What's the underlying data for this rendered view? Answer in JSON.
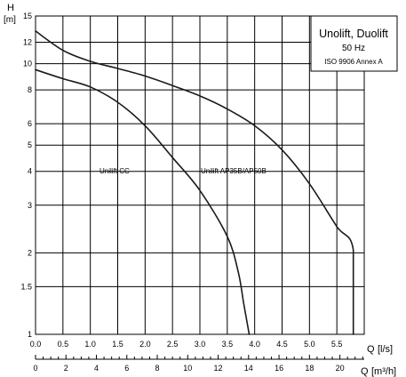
{
  "chart_data": {
    "type": "line",
    "y_unit_label": "H",
    "y_unit": "[m]",
    "x_label": "Q",
    "x_unit": "[l/s]",
    "x2_label": "Q",
    "x2_unit": "[m³/h]",
    "legend_box": {
      "title": "Unolift, Duolift",
      "line2": "50 Hz",
      "line3": "ISO 9906 Annex A"
    },
    "y_scale": "log",
    "ylim": [
      1,
      15
    ],
    "xlim": [
      0,
      6.0
    ],
    "x2lim": [
      0,
      21.6
    ],
    "y_ticks": [
      {
        "v": 1,
        "label": "1"
      },
      {
        "v": 1.5,
        "label": "1.5"
      },
      {
        "v": 2,
        "label": "2"
      },
      {
        "v": 3,
        "label": "3"
      },
      {
        "v": 4,
        "label": "4"
      },
      {
        "v": 5,
        "label": "5"
      },
      {
        "v": 6,
        "label": "6"
      },
      {
        "v": 8,
        "label": "8"
      },
      {
        "v": 10,
        "label": "10"
      },
      {
        "v": 12,
        "label": "12"
      },
      {
        "v": 15,
        "label": "15"
      }
    ],
    "x_ticks": [
      {
        "v": 0.0,
        "label": "0.0"
      },
      {
        "v": 0.5,
        "label": "0.5"
      },
      {
        "v": 1.0,
        "label": "1.0"
      },
      {
        "v": 1.5,
        "label": "1.5"
      },
      {
        "v": 2.0,
        "label": "2.0"
      },
      {
        "v": 2.5,
        "label": "2.5"
      },
      {
        "v": 3.0,
        "label": "3.0"
      },
      {
        "v": 3.5,
        "label": "3.5"
      },
      {
        "v": 4.0,
        "label": "4.0"
      },
      {
        "v": 4.5,
        "label": "4.5"
      },
      {
        "v": 5.0,
        "label": "5.0"
      },
      {
        "v": 5.5,
        "label": "5.5"
      }
    ],
    "x2_ticks": [
      {
        "v": 0,
        "label": "0"
      },
      {
        "v": 2,
        "label": "2"
      },
      {
        "v": 4,
        "label": "4"
      },
      {
        "v": 6,
        "label": "6"
      },
      {
        "v": 8,
        "label": "8"
      },
      {
        "v": 10,
        "label": "10"
      },
      {
        "v": 12,
        "label": "12"
      },
      {
        "v": 14,
        "label": "14"
      },
      {
        "v": 16,
        "label": "16"
      },
      {
        "v": 18,
        "label": "18"
      },
      {
        "v": 20,
        "label": "20"
      }
    ],
    "grid": true,
    "series": [
      {
        "name": "Unilift CC",
        "x": [
          0,
          0.5,
          1.0,
          1.5,
          2.0,
          2.5,
          3.0,
          3.5,
          3.7,
          3.8,
          3.9
        ],
        "y": [
          9.5,
          8.8,
          8.2,
          7.2,
          5.9,
          4.5,
          3.4,
          2.3,
          1.7,
          1.3,
          1.0
        ]
      },
      {
        "name": "Unilift AP35B/AP50B",
        "x": [
          0,
          0.5,
          1.0,
          1.5,
          2.0,
          2.5,
          3.0,
          3.5,
          4.0,
          4.5,
          5.0,
          5.5,
          5.8,
          5.8
        ],
        "y": [
          13.2,
          11.2,
          10.2,
          9.6,
          9.0,
          8.3,
          7.6,
          6.8,
          5.9,
          4.8,
          3.6,
          2.5,
          2.05,
          1.0
        ]
      }
    ]
  }
}
